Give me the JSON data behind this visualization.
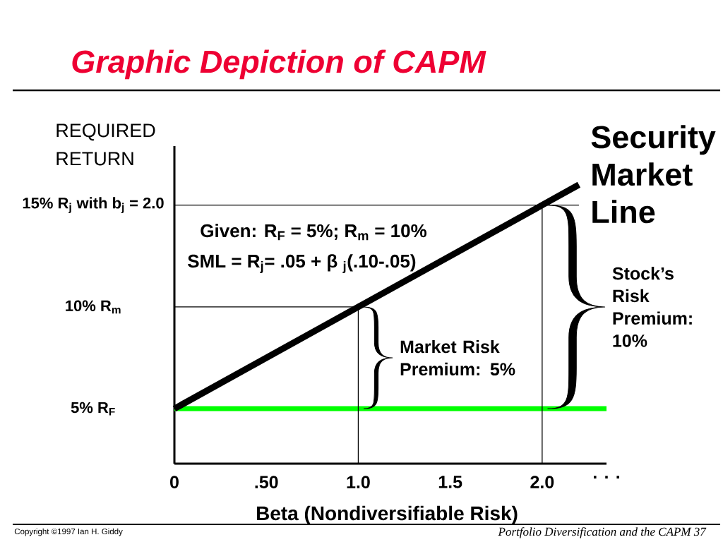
{
  "chart_data": {
    "type": "line",
    "title": "Graphic Depiction of CAPM",
    "xlabel": "Beta (Nondiversifiable Risk)",
    "ylabel": "REQUIRED RETURN",
    "xlim": [
      0,
      2.35
    ],
    "xticks": [
      0,
      {
        "value": 0.5,
        "label": ".50"
      },
      {
        "value": 1,
        "label": "1.0"
      },
      {
        "value": 1.5,
        "label": "1.5"
      },
      {
        "value": 2,
        "label": "2.0"
      },
      {
        "value": 2.35,
        "label": ". . ."
      }
    ],
    "ylim": [
      2.3,
      17.9
    ],
    "yticks": [
      {
        "value": 5,
        "label": "5% R$_{F}$"
      },
      {
        "value": 10,
        "label": "10% R$_{m}$"
      },
      {
        "value": 15,
        "label": "15% R$_{j}$ with b$_{j}$ = 2.0"
      }
    ],
    "series": [
      {
        "name": "Security Market Line",
        "color": "#000000",
        "x": [
          0,
          1,
          2,
          2.2
        ],
        "values": [
          5,
          10,
          15,
          16
        ]
      },
      {
        "color": "#000000",
        "x": [
          0,
          1,
          1
        ],
        "values": [
          10,
          10,
          2.3
        ]
      },
      {
        "color": "#000000",
        "x": [
          0,
          2.2
        ],
        "values": [
          15,
          15
        ]
      },
      {
        "color": "#000000",
        "x": [
          2,
          2
        ],
        "values": [
          15,
          2.3
        ]
      }
    ],
    "ref_lines": [
      {
        "axis": "y",
        "value": 5,
        "color": "#00ff00"
      }
    ],
    "annotations": [
      "Given: R$_{F}$ = 5%; R$_{m}$ = 10%",
      "SML = R$_{j}$= .05 + β $_{j}$(.10-.05)",
      "Market Risk Premium: 5%",
      "Stock’s Risk Premium: 10%",
      "Copyright ©1997 Ian H. Giddy",
      "Portfolio Diversification and the CAPM 37"
    ]
  }
}
